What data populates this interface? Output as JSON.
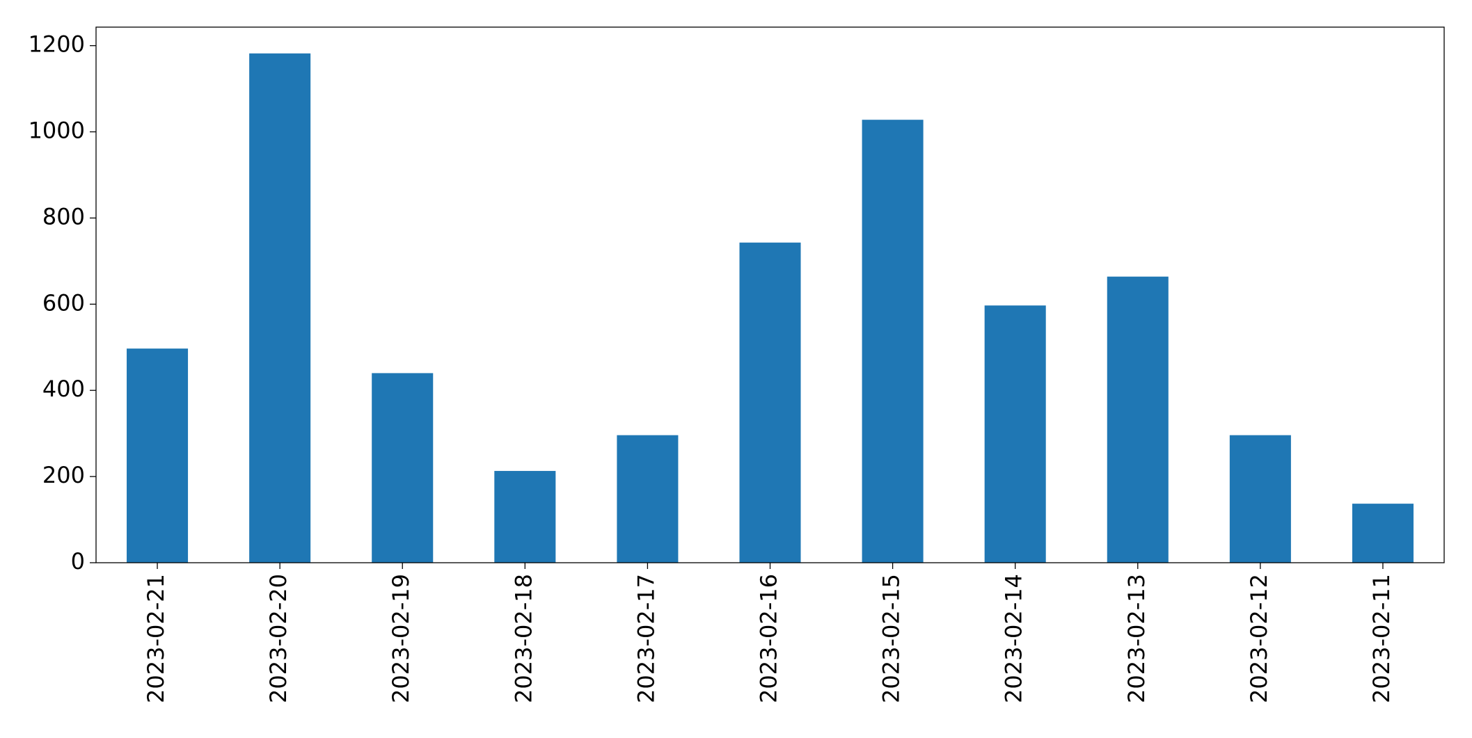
{
  "chart_data": {
    "type": "bar",
    "categories": [
      "2023-02-21",
      "2023-02-20",
      "2023-02-19",
      "2023-02-18",
      "2023-02-17",
      "2023-02-16",
      "2023-02-15",
      "2023-02-14",
      "2023-02-13",
      "2023-02-12",
      "2023-02-11"
    ],
    "values": [
      497,
      1182,
      440,
      213,
      296,
      743,
      1028,
      597,
      664,
      296,
      137
    ],
    "color": "#1f77b4",
    "ylim": [
      0,
      1243
    ],
    "yticks": [
      0,
      200,
      400,
      600,
      800,
      1000,
      1200
    ],
    "grid": false
  }
}
